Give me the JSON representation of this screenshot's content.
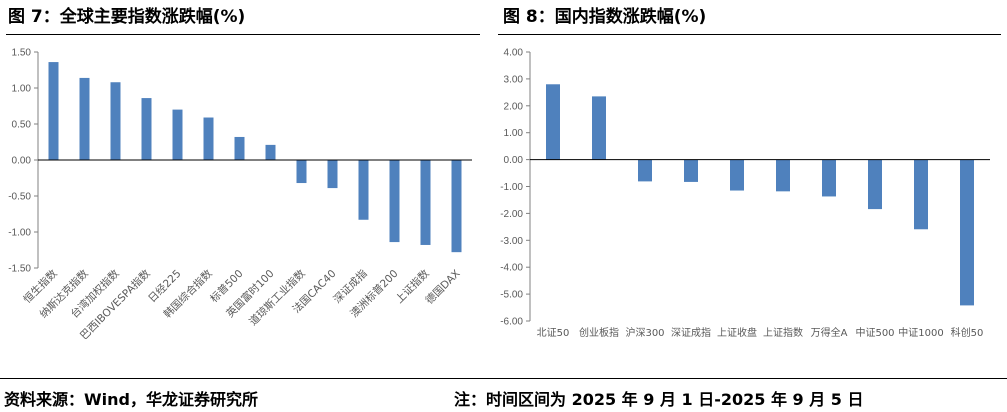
{
  "left_figure": {
    "title": "图 7：全球主要指数涨跌幅(%)"
  },
  "right_figure": {
    "title": "图 8：国内指数涨跌幅(%)"
  },
  "footer": {
    "source": "资料来源：Wind，华龙证券研究所",
    "note": "注：时间区间为 2025 年 9 月 1 日-2025 年 9 月 5 日"
  },
  "colors": {
    "bar": "#4f81bd",
    "axis": "#000000",
    "text": "#595959"
  },
  "chart_data": [
    {
      "type": "bar",
      "title": "全球主要指数涨跌幅(%)",
      "categories": [
        "恒生指数",
        "纳斯达克指数",
        "台湾加权指数",
        "巴西IBOVESPA指数",
        "日经225",
        "韩国综合指数",
        "标普500",
        "英国富时100",
        "道琼斯工业指数",
        "法国CAC40",
        "深证成指",
        "澳洲标普200",
        "上证指数",
        "德国DAX"
      ],
      "values": [
        1.36,
        1.14,
        1.08,
        0.86,
        0.7,
        0.59,
        0.32,
        0.21,
        -0.32,
        -0.39,
        -0.83,
        -1.14,
        -1.18,
        -1.28
      ],
      "ylim": [
        -1.5,
        1.5
      ],
      "yticks": [
        "1.50",
        "1.00",
        "0.50",
        "0.00",
        "-0.50",
        "-1.00",
        "-1.50"
      ],
      "xlabel": "",
      "ylabel": "",
      "grid": false
    },
    {
      "type": "bar",
      "title": "国内指数涨跌幅(%)",
      "categories": [
        "北证50",
        "创业板指",
        "沪深300",
        "深证成指",
        "上证收盘",
        "上证指数",
        "万得全A",
        "中证500",
        "中证1000",
        "科创50"
      ],
      "values": [
        2.8,
        2.35,
        -0.81,
        -0.83,
        -1.15,
        -1.18,
        -1.37,
        -1.84,
        -2.59,
        -5.42
      ],
      "ylim": [
        -6.0,
        4.0
      ],
      "yticks": [
        "4.00",
        "3.00",
        "2.00",
        "1.00",
        "0.00",
        "-1.00",
        "-2.00",
        "-3.00",
        "-4.00",
        "-5.00",
        "-6.00"
      ],
      "xlabel": "",
      "ylabel": "",
      "grid": false
    }
  ]
}
